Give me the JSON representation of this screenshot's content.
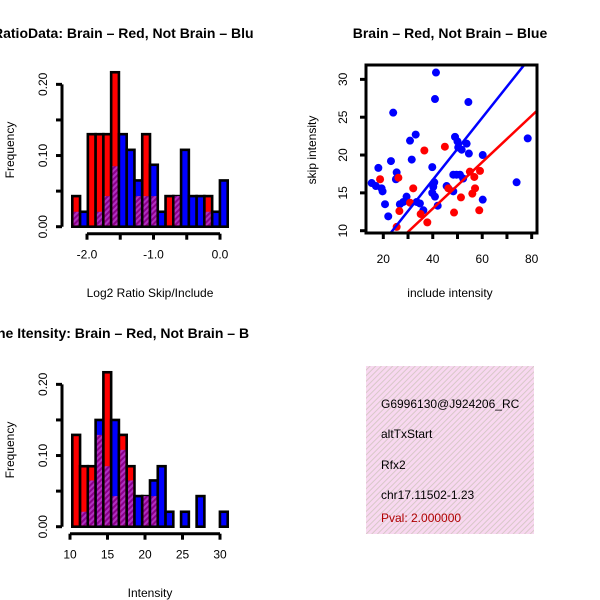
{
  "chart_data": [
    {
      "type": "bar",
      "title": "RatioData: Brain – Red, Not Brain – Blu",
      "xlabel": "Log2 Ratio Skip/Include",
      "ylabel": "Frequency",
      "xlim": [
        -2.22,
        0.11
      ],
      "ylim": [
        0,
        0.2
      ],
      "xticks": [
        "-2.0",
        "-1.0",
        "0.0"
      ],
      "xtick_values": [
        -2.0,
        -1.5,
        -1.0,
        -0.5,
        0.0
      ],
      "yticks": [
        "0.00",
        "0.10",
        "0.20"
      ],
      "ytick_values": [
        0,
        0.05,
        0.1,
        0.15,
        0.2
      ],
      "bin_start": -2.22,
      "bin_width": 0.1166,
      "series": [
        {
          "name": "Brain",
          "color": "#ff0000",
          "values": [
            0.043,
            0,
            0.13,
            0.13,
            0.13,
            0.217,
            0,
            0,
            0.043,
            0.13,
            0.043,
            0,
            0.043,
            0.043,
            0,
            0,
            0,
            0.043,
            0,
            0
          ]
        },
        {
          "name": "Not Brain",
          "color": "#0000ff",
          "values": [
            0.021,
            0.021,
            0,
            0.021,
            0.043,
            0.085,
            0.13,
            0.108,
            0.065,
            0.043,
            0.087,
            0.021,
            0,
            0.043,
            0.108,
            0.043,
            0.043,
            0.021,
            0.021,
            0.065
          ]
        }
      ],
      "overlap_color": "#a020a0"
    },
    {
      "type": "scatter",
      "title": "Brain – Red, Not Brain – Blue",
      "xlabel": "include intensity",
      "ylabel": "skip intensity",
      "xlim": [
        13,
        82.4
      ],
      "ylim": [
        9.7,
        31.9
      ],
      "xticks": [
        "20",
        "40",
        "60",
        "80"
      ],
      "xtick_values": [
        20,
        30,
        40,
        50,
        60,
        70,
        80
      ],
      "yticks": [
        "10",
        "15",
        "20",
        "25",
        "30"
      ],
      "ytick_values": [
        10,
        15,
        20,
        25,
        30
      ],
      "series": [
        {
          "name": "Not Brain",
          "color": "#0000ff",
          "fit": {
            "slope": 0.411,
            "intercept": 0.27
          },
          "points": [
            [
              41.3,
              30.9
            ],
            [
              40.9,
              27.4
            ],
            [
              54.4,
              27.0
            ],
            [
              24.0,
              25.6
            ],
            [
              33.1,
              22.7
            ],
            [
              30.8,
              21.9
            ],
            [
              49.0,
              22.4
            ],
            [
              50.0,
              21.8
            ],
            [
              53.7,
              21.5
            ],
            [
              50.3,
              21.0
            ],
            [
              51.7,
              20.7
            ],
            [
              54.6,
              20.2
            ],
            [
              60.2,
              20.0
            ],
            [
              31.5,
              19.4
            ],
            [
              23.1,
              19.2
            ],
            [
              18.0,
              18.3
            ],
            [
              39.8,
              18.4
            ],
            [
              25.4,
              17.7
            ],
            [
              25.1,
              16.8
            ],
            [
              40.6,
              16.4
            ],
            [
              40.2,
              15.8
            ],
            [
              45.6,
              15.9
            ],
            [
              48.3,
              17.4
            ],
            [
              49.6,
              17.4
            ],
            [
              51.0,
              17.4
            ],
            [
              52.3,
              16.9
            ],
            [
              15.3,
              16.3
            ],
            [
              17.0,
              15.9
            ],
            [
              19.3,
              15.6
            ],
            [
              19.7,
              15.2
            ],
            [
              39.8,
              15.0
            ],
            [
              48.3,
              15.2
            ],
            [
              40.9,
              14.5
            ],
            [
              29.4,
              14.5
            ],
            [
              28.1,
              13.8
            ],
            [
              26.7,
              13.5
            ],
            [
              20.7,
              13.5
            ],
            [
              33.5,
              13.8
            ],
            [
              34.8,
              13.6
            ],
            [
              42.0,
              13.3
            ],
            [
              36.2,
              12.7
            ],
            [
              60.2,
              14.1
            ],
            [
              22.0,
              11.9
            ],
            [
              73.9,
              16.4
            ],
            [
              78.4,
              22.2
            ]
          ]
        },
        {
          "name": "Brain",
          "color": "#ff0000",
          "fit": {
            "slope": 0.307,
            "intercept": 0.64
          },
          "points": [
            [
              36.6,
              20.6
            ],
            [
              44.9,
              21.1
            ],
            [
              18.7,
              16.8
            ],
            [
              26.1,
              17.0
            ],
            [
              32.1,
              15.6
            ],
            [
              30.8,
              13.7
            ],
            [
              26.5,
              12.6
            ],
            [
              25.4,
              10.5
            ],
            [
              35.1,
              12.2
            ],
            [
              37.8,
              11.1
            ],
            [
              46.3,
              15.6
            ],
            [
              48.6,
              12.4
            ],
            [
              51.4,
              14.4
            ],
            [
              55.0,
              17.8
            ],
            [
              56.8,
              17.1
            ],
            [
              59.1,
              17.9
            ],
            [
              57.1,
              15.6
            ],
            [
              56.0,
              14.9
            ],
            [
              58.8,
              12.7
            ]
          ]
        }
      ]
    },
    {
      "type": "bar",
      "title": "ne Itensity: Brain – Red, Not Brain – B",
      "xlabel": "Intensity",
      "ylabel": "Frequency",
      "xlim": [
        10.3,
        30.8
      ],
      "ylim": [
        0,
        0.2
      ],
      "xticks": [
        "10",
        "15",
        "20",
        "25",
        "30"
      ],
      "xtick_values": [
        10,
        15,
        20,
        25,
        30
      ],
      "yticks": [
        "0.00",
        "0.10",
        "0.20"
      ],
      "ytick_values": [
        0,
        0.05,
        0.1,
        0.15,
        0.2
      ],
      "bin_start": 10.3,
      "bin_width": 1.025,
      "series": [
        {
          "name": "Brain",
          "color": "#ff0000",
          "values": [
            0.129,
            0.085,
            0.085,
            0.129,
            0.217,
            0.043,
            0.129,
            0.085,
            0,
            0.043,
            0.043,
            0,
            0,
            0,
            0,
            0,
            0,
            0,
            0,
            0
          ]
        },
        {
          "name": "Not Brain",
          "color": "#0000ff",
          "values": [
            0,
            0.021,
            0.065,
            0.15,
            0.085,
            0.15,
            0.108,
            0.065,
            0.043,
            0.043,
            0.065,
            0.085,
            0.021,
            0,
            0.021,
            0,
            0.043,
            0,
            0,
            0.021
          ]
        }
      ],
      "overlap_color": "#a020a0"
    }
  ],
  "info_panel": {
    "lines": [
      "G6996130@J924206_RC",
      "altTxStart",
      "Rfx2",
      "chr17.11502-1.23"
    ],
    "pval": "Pval: 2.000000",
    "pval_color": "#b00000",
    "background": "#f8d8f0"
  }
}
